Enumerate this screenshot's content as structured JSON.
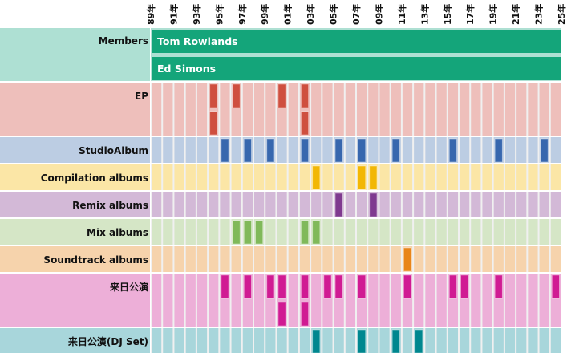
{
  "chart_data": {
    "type": "timeline",
    "title": "",
    "x_axis": {
      "start_year": 1989,
      "end_year": 2025,
      "tick_labels": [
        "89年",
        "91年",
        "93年",
        "95年",
        "97年",
        "99年",
        "01年",
        "03年",
        "05年",
        "07年",
        "09年",
        "11年",
        "13年",
        "15年",
        "17年",
        "19年",
        "21年",
        "23年",
        "25年"
      ]
    },
    "grid": true,
    "members": {
      "label": "Members",
      "background": "#aee0d3",
      "bar_color": "#14a57a",
      "names": [
        {
          "name": "Tom Rowlands",
          "from": 1989,
          "to": 2025
        },
        {
          "name": "Ed Simons",
          "from": 1989,
          "to": 2025
        }
      ]
    },
    "series": [
      {
        "name": "EP",
        "lanes": 2,
        "background": "#eebfbb",
        "mark_color": "#cf4f3f",
        "events": [
          {
            "year": 1994,
            "lane": 0
          },
          {
            "year": 1994,
            "lane": 1
          },
          {
            "year": 1996,
            "lane": 0
          },
          {
            "year": 2000,
            "lane": 0
          },
          {
            "year": 2002,
            "lane": 0
          },
          {
            "year": 2002,
            "lane": 1
          }
        ]
      },
      {
        "name": "StudioAlbum",
        "lanes": 1,
        "background": "#bccde3",
        "mark_color": "#3767ae",
        "events": [
          {
            "year": 1995,
            "lane": 0
          },
          {
            "year": 1997,
            "lane": 0
          },
          {
            "year": 1999,
            "lane": 0
          },
          {
            "year": 2002,
            "lane": 0
          },
          {
            "year": 2005,
            "lane": 0
          },
          {
            "year": 2007,
            "lane": 0
          },
          {
            "year": 2010,
            "lane": 0
          },
          {
            "year": 2015,
            "lane": 0
          },
          {
            "year": 2019,
            "lane": 0
          },
          {
            "year": 2023,
            "lane": 0
          }
        ]
      },
      {
        "name": "Compilation albums",
        "lanes": 1,
        "background": "#fbe6a6",
        "mark_color": "#f2b705",
        "events": [
          {
            "year": 2003,
            "lane": 0
          },
          {
            "year": 2007,
            "lane": 0
          },
          {
            "year": 2008,
            "lane": 0
          }
        ]
      },
      {
        "name": "Remix albums",
        "lanes": 1,
        "background": "#d3b9d7",
        "mark_color": "#7f3a8f",
        "events": [
          {
            "year": 2005,
            "lane": 0
          },
          {
            "year": 2008,
            "lane": 0
          }
        ]
      },
      {
        "name": "Mix albums",
        "lanes": 1,
        "background": "#d5e6c6",
        "mark_color": "#80b95a",
        "events": [
          {
            "year": 1996,
            "lane": 0
          },
          {
            "year": 1997,
            "lane": 0
          },
          {
            "year": 1998,
            "lane": 0
          },
          {
            "year": 2002,
            "lane": 0
          },
          {
            "year": 2003,
            "lane": 0
          }
        ]
      },
      {
        "name": "Soundtrack albums",
        "lanes": 1,
        "background": "#f6d3ac",
        "mark_color": "#e8851a",
        "events": [
          {
            "year": 2011,
            "lane": 0
          }
        ]
      },
      {
        "name": "来日公演",
        "lanes": 2,
        "background": "#edafd8",
        "mark_color": "#d01b93",
        "events": [
          {
            "year": 1995,
            "lane": 0
          },
          {
            "year": 1997,
            "lane": 0
          },
          {
            "year": 1999,
            "lane": 0
          },
          {
            "year": 2000,
            "lane": 0
          },
          {
            "year": 2000,
            "lane": 1
          },
          {
            "year": 2002,
            "lane": 0
          },
          {
            "year": 2002,
            "lane": 1
          },
          {
            "year": 2004,
            "lane": 0
          },
          {
            "year": 2005,
            "lane": 0
          },
          {
            "year": 2007,
            "lane": 0
          },
          {
            "year": 2011,
            "lane": 0
          },
          {
            "year": 2015,
            "lane": 0
          },
          {
            "year": 2016,
            "lane": 0
          },
          {
            "year": 2019,
            "lane": 0
          },
          {
            "year": 2024,
            "lane": 0
          }
        ]
      },
      {
        "name": "来日公演(DJ Set)",
        "lanes": 1,
        "background": "#a8d6db",
        "mark_color": "#00878f",
        "events": [
          {
            "year": 2003,
            "lane": 0
          },
          {
            "year": 2007,
            "lane": 0
          },
          {
            "year": 2010,
            "lane": 0
          },
          {
            "year": 2012,
            "lane": 0
          }
        ]
      }
    ]
  }
}
